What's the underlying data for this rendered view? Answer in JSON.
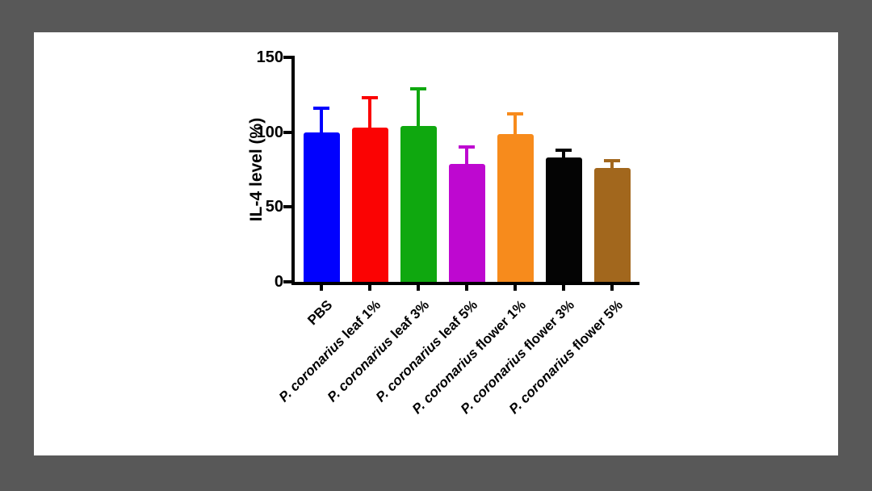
{
  "canvas": {
    "background_color": "#585858",
    "panel_color": "#ffffff"
  },
  "chart_data": {
    "type": "bar",
    "title": "",
    "xlabel": "",
    "ylabel": "IL-4 level (%)",
    "ylim": [
      0,
      150
    ],
    "yticks": [
      0,
      50,
      100,
      150
    ],
    "grid": false,
    "legend_position": "none",
    "axis_color": "#000000",
    "categories": [
      {
        "italic": "",
        "text": "PBS"
      },
      {
        "italic": "P. coronarius",
        "text": " leaf 1%"
      },
      {
        "italic": "P. coronarius",
        "text": " leaf 3%"
      },
      {
        "italic": "P. coronarius",
        "text": " leaf 5%"
      },
      {
        "italic": "P. coronarius",
        "text": " flower 1%"
      },
      {
        "italic": "P. coronarius",
        "text": " flower 3%"
      },
      {
        "italic": "P. coronarius",
        "text": " flower 5%"
      }
    ],
    "values": [
      100,
      103,
      104,
      79,
      99,
      83,
      76
    ],
    "errors_up": [
      16,
      20,
      25,
      11,
      13,
      5,
      5
    ],
    "bar_colors": [
      "#0101FE",
      "#FB0303",
      "#0FA80F",
      "#BE08D0",
      "#F78B1C",
      "#040404",
      "#A2671D"
    ]
  }
}
